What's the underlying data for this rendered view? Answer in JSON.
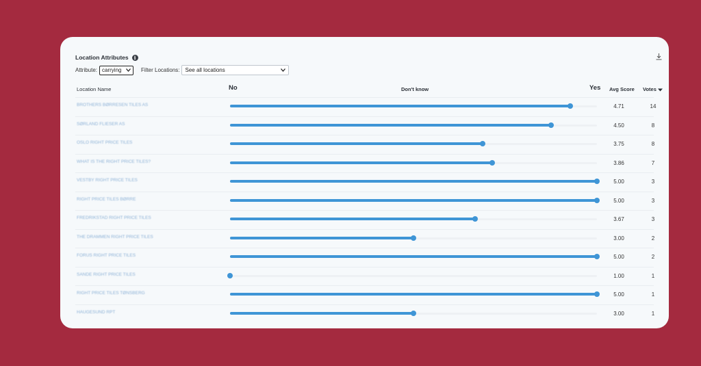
{
  "colors": {
    "background": "#a42a3f",
    "card": "#f6f9fb",
    "accent": "#3f95d6"
  },
  "panel": {
    "title": "Location Attributes",
    "info_icon": "info-icon",
    "download_icon": "download-icon"
  },
  "filters": {
    "attribute_label": "Attribute:",
    "attribute_value": "carrying",
    "locations_label": "Filter Locations:",
    "locations_value": "See all locations"
  },
  "columns": {
    "name": "Location Name",
    "no": "No",
    "dont_know": "Don't know",
    "yes": "Yes",
    "avg_score": "Avg Score",
    "votes": "Votes"
  },
  "score_scale": {
    "min": 1,
    "max": 5
  },
  "rows": [
    {
      "name": "BROTHERS BØRRESEN TILES AS",
      "avg": "4.71",
      "score": 4.71,
      "votes": "14"
    },
    {
      "name": "SØRLAND FLIESER AS",
      "avg": "4.50",
      "score": 4.5,
      "votes": "8"
    },
    {
      "name": "OSLO RIGHT PRICE TILES",
      "avg": "3.75",
      "score": 3.75,
      "votes": "8"
    },
    {
      "name": "WHAT IS THE RIGHT PRICE TILES?",
      "avg": "3.86",
      "score": 3.86,
      "votes": "7"
    },
    {
      "name": "VESTBY RIGHT PRICE TILES",
      "avg": "5.00",
      "score": 5.0,
      "votes": "3"
    },
    {
      "name": "RIGHT PRICE TILES BØRRE",
      "avg": "5.00",
      "score": 5.0,
      "votes": "3"
    },
    {
      "name": "FREDRIKSTAD RIGHT PRICE TILES",
      "avg": "3.67",
      "score": 3.67,
      "votes": "3"
    },
    {
      "name": "THE DRAMMEN RIGHT PRICE TILES",
      "avg": "3.00",
      "score": 3.0,
      "votes": "2"
    },
    {
      "name": "FORUS RIGHT PRICE TILES",
      "avg": "5.00",
      "score": 5.0,
      "votes": "2"
    },
    {
      "name": "SANDE RIGHT PRICE TILES",
      "avg": "1.00",
      "score": 1.0,
      "votes": "1"
    },
    {
      "name": "RIGHT PRICE TILES TØNSBERG",
      "avg": "5.00",
      "score": 5.0,
      "votes": "1"
    },
    {
      "name": "HAUGESUND RPT",
      "avg": "3.00",
      "score": 3.0,
      "votes": "1"
    }
  ]
}
